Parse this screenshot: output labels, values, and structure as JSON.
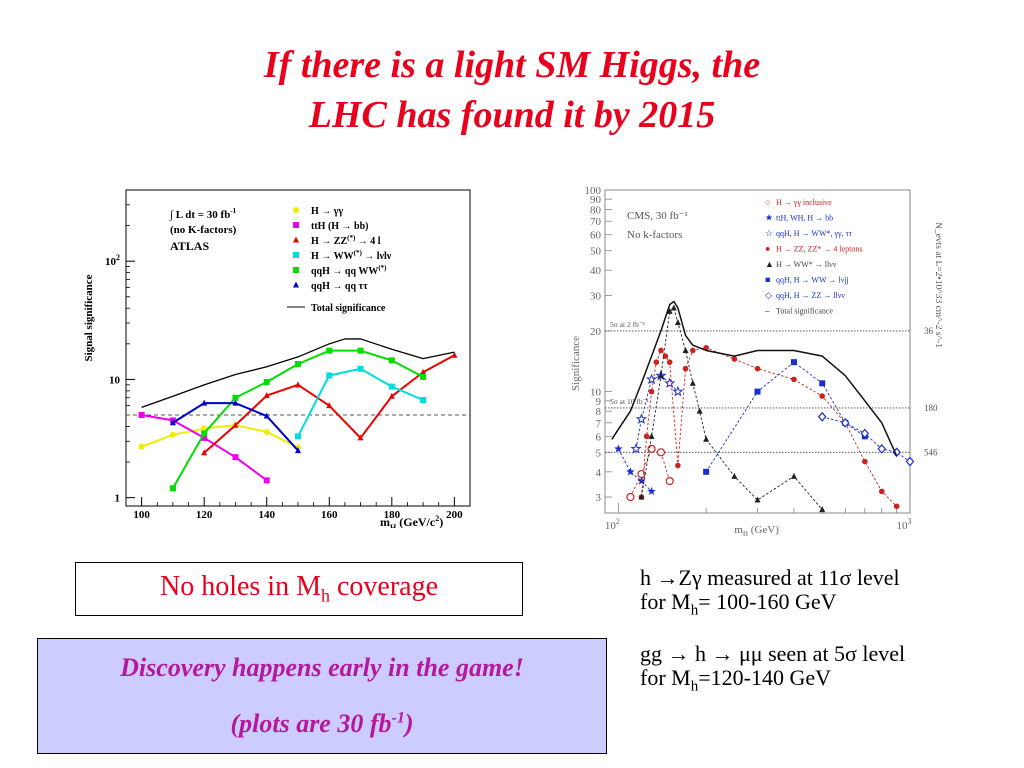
{
  "title": {
    "line1": "If there is a light SM Higgs, the",
    "line2": "LHC has found it by 2015"
  },
  "colors": {
    "title": "#e8001c",
    "box1_text": "#e8001c",
    "box2_bg": "#ccccff",
    "box2_text": "#b5179e"
  },
  "box1": {
    "text_before": "No holes in M",
    "subscript": "h",
    "text_after": " coverage"
  },
  "box2": {
    "line1": "Discovery happens early in the game!",
    "line2_before": "(plots are 30 fb",
    "line2_sup": "-1",
    "line2_after": ")"
  },
  "notes": [
    {
      "line1": "h →Zγ measured at 11σ level",
      "line2_before": "for M",
      "line2_sub": "h",
      "line2_after": "= 100-160 GeV"
    },
    {
      "line1": "gg → h → μμ seen at 5σ level",
      "line2_before": "for M",
      "line2_sub": "h",
      "line2_after": "=120-140 GeV"
    }
  ],
  "chart_data": [
    {
      "type": "line",
      "yscale": "log",
      "xlim": [
        95,
        205
      ],
      "ylim": [
        0.85,
        400
      ],
      "xlabel": "m",
      "xlabel_sub": "H",
      "xlabel_unit": "(GeV/c",
      "xlabel_unit_sup": "2",
      "xlabel_unit_end": ")",
      "ylabel": "Signal significance",
      "xticks": [
        100,
        120,
        140,
        160,
        180,
        200
      ],
      "yticks": [
        {
          "value": 1,
          "label": "1"
        },
        {
          "value": 10,
          "label": "10"
        },
        {
          "value": 100,
          "label": "10",
          "sup": "2"
        }
      ],
      "threshold": 5,
      "annotation": {
        "line1": "∫ L dt = 30 fb",
        "line1_sup": "-1",
        "line2": "(no K-factors)",
        "line3": "ATLAS"
      },
      "series": [
        {
          "name": "H → γγ",
          "color": "#eeee00",
          "marker": "circle",
          "x": [
            100,
            110,
            120,
            130,
            140,
            150
          ],
          "y": [
            2.7,
            3.4,
            3.85,
            4.1,
            3.6,
            2.65
          ]
        },
        {
          "name": "ttH (H → bb)",
          "color": "#ee00ee",
          "marker": "square",
          "x": [
            100,
            110,
            120,
            130,
            140
          ],
          "y": [
            5.0,
            4.5,
            3.2,
            2.2,
            1.4
          ]
        },
        {
          "name": "H → ZZ(*) → 4 l",
          "name_parts": [
            "H → ZZ",
            "(*)",
            " → 4 l"
          ],
          "color": "#ee0000",
          "marker": "triangle",
          "x": [
            120,
            130,
            140,
            150,
            160,
            170,
            180,
            190,
            200
          ],
          "y": [
            2.4,
            4.1,
            7.3,
            9.0,
            6.0,
            3.2,
            7.2,
            11.5,
            16.0
          ]
        },
        {
          "name": "H → WW(*) → lνlν",
          "name_parts": [
            "H → WW",
            "(*)",
            " → lνlν"
          ],
          "color": "#00dddd",
          "marker": "square",
          "x": [
            150,
            160,
            170,
            180,
            190
          ],
          "y": [
            3.3,
            10.8,
            12.3,
            8.7,
            6.7
          ]
        },
        {
          "name": "qqH → qq WW(*)",
          "name_parts": [
            "qqH → qq WW",
            "(*)",
            ""
          ],
          "color": "#00dd00",
          "marker": "square",
          "x": [
            110,
            120,
            130,
            140,
            150,
            160,
            170,
            180,
            190
          ],
          "y": [
            1.2,
            3.5,
            7.0,
            9.5,
            13.5,
            17.5,
            17.5,
            14.5,
            10.5
          ]
        },
        {
          "name": "qqH → qq ττ",
          "color": "#0000cc",
          "marker": "triangle",
          "x": [
            110,
            120,
            130,
            140,
            150
          ],
          "y": [
            4.3,
            6.3,
            6.3,
            4.9,
            2.5
          ]
        },
        {
          "name": "Total significance",
          "color": "#000000",
          "marker": "none",
          "x": [
            100,
            110,
            120,
            130,
            140,
            150,
            160,
            165,
            170,
            180,
            190,
            200
          ],
          "y": [
            5.8,
            7.2,
            9.0,
            11.0,
            12.8,
            15.5,
            20.0,
            22.0,
            22.0,
            18.0,
            15.0,
            17.0
          ]
        }
      ]
    },
    {
      "type": "line",
      "yscale": "log",
      "xscale": "log",
      "xlim": [
        90,
        1000
      ],
      "ylim": [
        2.5,
        100
      ],
      "xlabel": "m",
      "xlabel_sub": "H",
      "xlabel_unit": " (GeV)",
      "ylabel": "Significance",
      "xtick_labels": [
        {
          "value": 100,
          "label": "10",
          "sup": "2"
        },
        {
          "value": 1000,
          "label": "10",
          "sup": "3"
        }
      ],
      "yticks": [
        3,
        4,
        5,
        6,
        7,
        8,
        9,
        10,
        20,
        30,
        40,
        50,
        60,
        70,
        80,
        90,
        100
      ],
      "right_axis_label": "N_evts at L=2•10^33 cm^-2 s^-1",
      "right_ticks": [
        "36",
        "180",
        "546"
      ],
      "hlines": [
        {
          "value": 5,
          "right_label": "546"
        },
        {
          "value": 8.3,
          "left_label": "5σ at 10 fb⁻¹",
          "right_label": "180"
        },
        {
          "value": 20,
          "left_label": "5σ at 2 fb⁻¹",
          "right_label": "36"
        }
      ],
      "annotation": {
        "line1": "CMS, 30 fb⁻¹",
        "line2": "No k-factors"
      },
      "legend": [
        {
          "label": "H → γγ inclusive",
          "color": "#cc2222",
          "marker": "○"
        },
        {
          "label": "ttH, WH, H → bb",
          "color": "#1a2ecc",
          "marker": "★"
        },
        {
          "label": "qqH, H → WW*, γγ, ττ",
          "color": "#1a2ecc",
          "marker": "☆"
        },
        {
          "label": "H → ZZ, ZZ* → 4 leptons",
          "color": "#cc2222",
          "marker": "●"
        },
        {
          "label": "H → WW* → llνν",
          "color": "#222222",
          "marker": "▲"
        },
        {
          "label": "qqH, H → WW → lνjj",
          "color": "#1a2ecc",
          "marker": "■"
        },
        {
          "label": "qqH, H → ZZ → llνν",
          "color": "#1a2ecc",
          "marker": "◇"
        },
        {
          "label": "Total significance",
          "color": "#222222",
          "marker": "–"
        }
      ],
      "series": [
        {
          "name": "H → γγ inclusive",
          "color": "#cc2222",
          "marker": "circle_open",
          "x": [
            110,
            120,
            130,
            140,
            150
          ],
          "y": [
            3.0,
            3.9,
            5.2,
            5.0,
            3.6
          ]
        },
        {
          "name": "ttH, WH, H → bb",
          "color": "#1a2ecc",
          "marker": "star",
          "x": [
            100,
            110,
            120,
            130
          ],
          "y": [
            5.2,
            4.0,
            3.6,
            3.2
          ]
        },
        {
          "name": "qqH, H → WW*, γγ, ττ",
          "color": "#1a2ecc",
          "marker": "star_open",
          "x": [
            115,
            120,
            130,
            140,
            150,
            160
          ],
          "y": [
            5.2,
            7.3,
            11.5,
            12.0,
            11.0,
            10.0
          ]
        },
        {
          "name": "H → ZZ, ZZ* → 4 leptons",
          "color": "#cc2222",
          "marker": "dot",
          "x": [
            120,
            125,
            130,
            135,
            140,
            145,
            150,
            160,
            170,
            180,
            200,
            250,
            300,
            400,
            500,
            600,
            700,
            800,
            900
          ],
          "y": [
            3.0,
            6.0,
            10.0,
            14.0,
            16.0,
            15.0,
            14.0,
            4.3,
            13.0,
            16.0,
            16.5,
            14.5,
            13.0,
            11.5,
            9.5,
            7.0,
            4.5,
            3.2,
            2.7
          ]
        },
        {
          "name": "H → WW* → llνν",
          "color": "#222222",
          "marker": "triangle",
          "x": [
            120,
            130,
            140,
            150,
            155,
            160,
            170,
            180,
            190,
            200,
            250,
            300,
            400,
            500
          ],
          "y": [
            3.0,
            6.0,
            12.0,
            25.0,
            26.0,
            22.0,
            16.0,
            11.0,
            8.0,
            5.8,
            3.8,
            2.9,
            3.8,
            2.6
          ]
        },
        {
          "name": "qqH, H → WW → lνjj",
          "color": "#1a2ecc",
          "marker": "square",
          "x": [
            200,
            300,
            400,
            500,
            600,
            700
          ],
          "y": [
            4.0,
            10.0,
            14.0,
            11.0,
            7.0,
            6.0
          ]
        },
        {
          "name": "qqH, H → ZZ → llνν",
          "color": "#1a2ecc",
          "marker": "diamond_open",
          "x": [
            500,
            600,
            700,
            800,
            900,
            1000
          ],
          "y": [
            7.5,
            7.0,
            6.2,
            5.2,
            5.0,
            4.5
          ]
        },
        {
          "name": "Total significance",
          "color": "#111111",
          "marker": "none",
          "x": [
            95,
            100,
            110,
            120,
            130,
            140,
            150,
            155,
            160,
            170,
            180,
            190,
            200,
            250,
            300,
            400,
            500,
            600,
            700,
            800,
            900
          ],
          "y": [
            5.8,
            6.5,
            8.0,
            11.0,
            15.0,
            20.0,
            27.0,
            28.0,
            26.0,
            19.0,
            17.0,
            16.5,
            16.0,
            15.0,
            16.0,
            16.0,
            15.0,
            12.0,
            9.0,
            7.0,
            4.8
          ]
        }
      ]
    }
  ]
}
